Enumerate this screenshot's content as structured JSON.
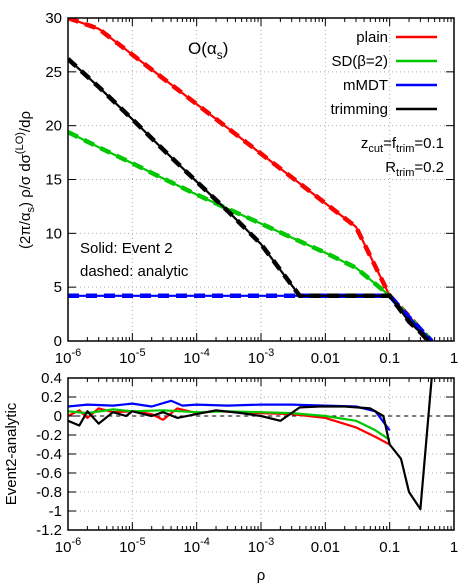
{
  "chart_data": [
    {
      "type": "line",
      "panel": "main",
      "title": "O(αs)",
      "title_main": "O(α",
      "title_sub": "s",
      "title_close": ")",
      "xlabel": "",
      "ylabel_parts": [
        "(2π/α",
        "s",
        ") ρ/σ dσ",
        "(LO)",
        "/dρ"
      ],
      "x_scale": "log",
      "xlim": [
        1e-06,
        1
      ],
      "ylim": [
        0,
        30
      ],
      "grid": true,
      "legend_position": "top-right",
      "x_tick_labels": [
        {
          "x": 1e-06,
          "base": "10",
          "exp": "-6"
        },
        {
          "x": 1e-05,
          "base": "10",
          "exp": "-5"
        },
        {
          "x": 0.0001,
          "base": "10",
          "exp": "-4"
        },
        {
          "x": 0.001,
          "base": "10",
          "exp": "-3"
        },
        {
          "x": 0.01,
          "base": "0.01",
          "exp": ""
        },
        {
          "x": 0.1,
          "base": "0.1",
          "exp": ""
        },
        {
          "x": 1,
          "base": "1",
          "exp": ""
        }
      ],
      "y_ticks": [
        0,
        5,
        10,
        15,
        20,
        25,
        30
      ],
      "y_tick_labels": [
        "0",
        "5",
        "10",
        "15",
        "20",
        "25",
        "30"
      ],
      "annotations": {
        "zcut_text": "z",
        "zcut_sub": "cut",
        "eq_text": "=f",
        "ftrim_sub": "trim",
        "zcut_value": "=0.1",
        "rtrim_text": "R",
        "rtrim_sub": "trim",
        "rtrim_value": "=0.2",
        "solid_note": "Solid: Event 2",
        "dashed_note": "dashed: analytic"
      },
      "series": [
        {
          "name": "plain",
          "color": "#ff0000",
          "x": [
            1e-06,
            3e-06,
            1e-05,
            3e-05,
            0.0001,
            0.0003,
            0.001,
            0.003,
            0.01,
            0.03,
            0.1,
            0.2,
            0.3,
            0.45
          ],
          "y": [
            30.0,
            29.0,
            26.6,
            24.4,
            22.0,
            19.8,
            17.4,
            15.2,
            12.8,
            10.6,
            4.2,
            2.3,
            1.1,
            0.0
          ]
        },
        {
          "name": "SD(β=2)",
          "color": "#00c800",
          "x": [
            1e-06,
            3e-06,
            1e-05,
            3e-05,
            0.0001,
            0.0003,
            0.001,
            0.003,
            0.01,
            0.03,
            0.1,
            0.2,
            0.3,
            0.45
          ],
          "y": [
            19.4,
            18.0,
            16.5,
            15.1,
            13.6,
            12.3,
            10.9,
            9.6,
            8.2,
            6.8,
            4.2,
            2.2,
            1.1,
            0.0
          ]
        },
        {
          "name": "mMDT",
          "color": "#0000ff",
          "x": [
            1e-06,
            1e-05,
            0.0001,
            0.001,
            0.01,
            0.05,
            0.1,
            0.2,
            0.3,
            0.45
          ],
          "y": [
            4.2,
            4.2,
            4.2,
            4.2,
            4.2,
            4.2,
            4.2,
            2.2,
            1.1,
            0.0
          ]
        },
        {
          "name": "trimming",
          "color": "#000000",
          "x": [
            1e-06,
            3e-06,
            1e-05,
            3e-05,
            0.0001,
            0.0003,
            0.001,
            0.004,
            0.01,
            0.05,
            0.1,
            0.2,
            0.3,
            0.4
          ],
          "y": [
            26.2,
            23.6,
            20.6,
            17.8,
            14.8,
            12.1,
            9.0,
            4.2,
            4.2,
            4.2,
            4.2,
            1.8,
            0.8,
            0.0
          ]
        }
      ]
    },
    {
      "type": "line",
      "panel": "difference",
      "xlabel": "ρ",
      "ylabel": "Event2-analytic",
      "x_scale": "log",
      "xlim": [
        1e-06,
        1
      ],
      "ylim": [
        -1.2,
        0.4
      ],
      "grid": true,
      "reference_line_y": 0,
      "x_tick_labels": [
        {
          "x": 1e-06,
          "base": "10",
          "exp": "-6"
        },
        {
          "x": 1e-05,
          "base": "10",
          "exp": "-5"
        },
        {
          "x": 0.0001,
          "base": "10",
          "exp": "-4"
        },
        {
          "x": 0.001,
          "base": "10",
          "exp": "-3"
        },
        {
          "x": 0.01,
          "base": "0.01",
          "exp": ""
        },
        {
          "x": 0.1,
          "base": "0.1",
          "exp": ""
        },
        {
          "x": 1,
          "base": "1",
          "exp": ""
        }
      ],
      "y_ticks": [
        -1.2,
        -1.0,
        -0.8,
        -0.6,
        -0.4,
        -0.2,
        0,
        0.2,
        0.4
      ],
      "y_tick_labels": [
        "-1.2",
        "-1",
        "-0.8",
        "-0.6",
        "-0.4",
        "-0.2",
        "0",
        "0.2",
        "0.4"
      ],
      "series": [
        {
          "name": "plain",
          "color": "#ff0000",
          "x": [
            1e-06,
            1.5e-06,
            2e-06,
            3e-06,
            5e-06,
            1e-05,
            2e-05,
            3e-05,
            5e-05,
            0.0001,
            0.0002,
            0.0005,
            0.001,
            0.003,
            0.01,
            0.03,
            0.06,
            0.1
          ],
          "y": [
            0.0,
            0.06,
            -0.02,
            0.08,
            0.04,
            0.05,
            0.02,
            -0.04,
            0.08,
            0.03,
            0.05,
            0.04,
            0.03,
            0.02,
            -0.02,
            -0.12,
            -0.22,
            -0.3
          ]
        },
        {
          "name": "SD(β=2)",
          "color": "#00c800",
          "x": [
            1e-06,
            2e-06,
            5e-06,
            1e-05,
            3e-05,
            0.0001,
            0.0003,
            0.001,
            0.003,
            0.01,
            0.03,
            0.06,
            0.1
          ],
          "y": [
            0.05,
            0.03,
            0.07,
            0.05,
            0.06,
            0.04,
            0.05,
            0.04,
            0.03,
            0.0,
            -0.05,
            -0.15,
            -0.25
          ]
        },
        {
          "name": "mMDT",
          "color": "#0000ff",
          "x": [
            1e-06,
            2e-06,
            5e-06,
            1e-05,
            2e-05,
            4e-05,
            6e-05,
            0.0001,
            0.0003,
            0.001,
            0.003,
            0.01,
            0.03,
            0.06,
            0.1
          ],
          "y": [
            0.1,
            0.12,
            0.11,
            0.13,
            0.1,
            0.16,
            0.11,
            0.12,
            0.11,
            0.12,
            0.12,
            0.11,
            0.1,
            0.05,
            -0.15
          ]
        },
        {
          "name": "trimming",
          "color": "#000000",
          "x": [
            1e-06,
            1.5e-06,
            2e-06,
            3e-06,
            5e-06,
            8e-06,
            1e-05,
            2e-05,
            3e-05,
            5e-05,
            0.0001,
            0.0002,
            0.0005,
            0.001,
            0.002,
            0.004,
            0.008,
            0.02,
            0.05,
            0.08,
            0.1,
            0.15,
            0.2,
            0.3,
            0.45
          ],
          "y": [
            -0.05,
            -0.1,
            0.05,
            -0.08,
            0.04,
            0.0,
            0.05,
            0.0,
            0.04,
            -0.02,
            0.02,
            0.06,
            0.03,
            0.0,
            -0.05,
            0.09,
            0.1,
            0.1,
            0.08,
            0.0,
            -0.3,
            -0.45,
            -0.8,
            -0.98,
            0.4
          ]
        }
      ]
    }
  ]
}
